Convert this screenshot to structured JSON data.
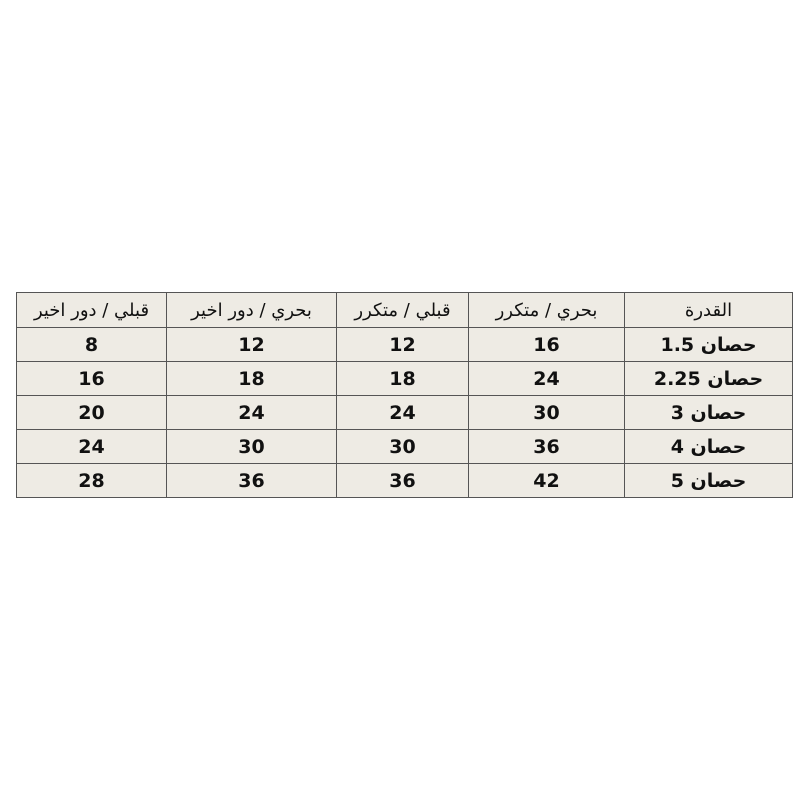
{
  "table": {
    "headers": [
      "القدرة",
      "بحري / متكرر",
      "قبلي / متكرر",
      "بحري / دور اخير",
      "قبلي / دور اخير"
    ],
    "rows": [
      [
        "حصان 1.5",
        "16",
        "12",
        "12",
        "8"
      ],
      [
        "حصان 2.25",
        "24",
        "18",
        "18",
        "16"
      ],
      [
        "حصان 3",
        "30",
        "24",
        "24",
        "20"
      ],
      [
        "حصان 4",
        "36",
        "30",
        "30",
        "24"
      ],
      [
        "حصان 5",
        "42",
        "36",
        "36",
        "28"
      ]
    ]
  },
  "colors": {
    "cell_background": "#eeebe4",
    "border": "#555555"
  }
}
